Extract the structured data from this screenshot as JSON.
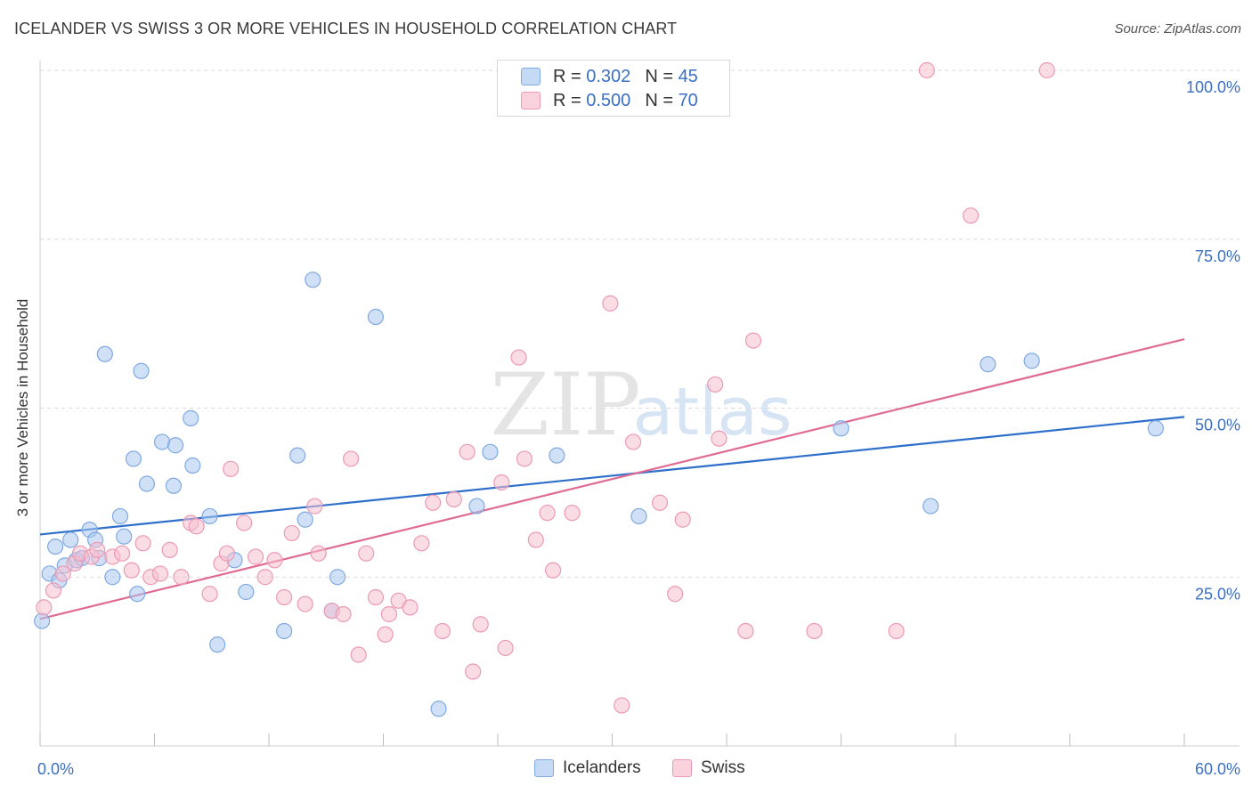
{
  "title": "ICELANDER VS SWISS 3 OR MORE VEHICLES IN HOUSEHOLD CORRELATION CHART",
  "source": "Source: ZipAtlas.com",
  "watermark": {
    "zip": "ZIP",
    "atlas": "atlas"
  },
  "legend": {
    "series": [
      {
        "r_label": "R =",
        "r_value": "0.302",
        "n_label": "N =",
        "n_value": "45",
        "color": "#aac8f0",
        "border": "#7fa9e0"
      },
      {
        "r_label": "R =",
        "r_value": "0.500",
        "n_label": "N =",
        "n_value": "70",
        "color": "#f6c0d0",
        "border": "#ec9ab4"
      }
    ]
  },
  "bottom_legend": [
    "Icelanders",
    "Swiss"
  ],
  "chart_data": {
    "type": "scatter",
    "title": "ICELANDER VS SWISS 3 OR MORE VEHICLES IN HOUSEHOLD CORRELATION CHART",
    "xlabel": "",
    "ylabel": "3 or more Vehicles in Household",
    "xlim": [
      0,
      60
    ],
    "ylim": [
      0,
      100
    ],
    "x_tick_labels": [
      "0.0%",
      "60.0%"
    ],
    "y_ticks": [
      25,
      50,
      75,
      100
    ],
    "y_tick_labels": [
      "25.0%",
      "50.0%",
      "75.0%",
      "100.0%"
    ],
    "series": [
      {
        "name": "Icelanders",
        "color": "#7fa9e0",
        "fill": "#aac8f0",
        "line_color": "#2f6fcc",
        "trend": {
          "x": [
            0,
            60
          ],
          "y": [
            31.3,
            48.7
          ]
        },
        "points": [
          [
            0.1,
            18.5
          ],
          [
            0.5,
            25.5
          ],
          [
            0.8,
            29.5
          ],
          [
            1.0,
            24.5
          ],
          [
            1.3,
            26.7
          ],
          [
            1.6,
            30.5
          ],
          [
            1.9,
            27.5
          ],
          [
            2.2,
            27.8
          ],
          [
            2.6,
            32.0
          ],
          [
            2.9,
            30.5
          ],
          [
            3.1,
            27.8
          ],
          [
            3.4,
            58.0
          ],
          [
            3.8,
            25.0
          ],
          [
            4.2,
            34.0
          ],
          [
            4.4,
            31.0
          ],
          [
            4.9,
            42.5
          ],
          [
            5.1,
            22.5
          ],
          [
            5.3,
            55.5
          ],
          [
            5.6,
            38.8
          ],
          [
            6.4,
            45.0
          ],
          [
            7.0,
            38.5
          ],
          [
            7.1,
            44.5
          ],
          [
            7.9,
            48.5
          ],
          [
            8.0,
            41.5
          ],
          [
            8.9,
            34.0
          ],
          [
            9.3,
            15.0
          ],
          [
            10.2,
            27.5
          ],
          [
            10.8,
            22.8
          ],
          [
            12.8,
            17.0
          ],
          [
            13.5,
            43.0
          ],
          [
            13.9,
            33.5
          ],
          [
            14.3,
            69.0
          ],
          [
            15.3,
            20.0
          ],
          [
            15.6,
            25.0
          ],
          [
            17.6,
            63.5
          ],
          [
            20.9,
            5.5
          ],
          [
            22.9,
            35.5
          ],
          [
            23.6,
            43.5
          ],
          [
            27.1,
            43.0
          ],
          [
            31.4,
            34.0
          ],
          [
            42.0,
            47.0
          ],
          [
            46.7,
            35.5
          ],
          [
            49.7,
            56.5
          ],
          [
            58.5,
            47.0
          ],
          [
            52.0,
            57.0
          ]
        ]
      },
      {
        "name": "Swiss",
        "color": "#ec9ab4",
        "fill": "#f6c0d0",
        "line_color": "#e06a93",
        "trend": {
          "x": [
            0,
            60
          ],
          "y": [
            18.8,
            60.2
          ]
        },
        "points": [
          [
            0.2,
            20.5
          ],
          [
            0.7,
            23.0
          ],
          [
            1.2,
            25.5
          ],
          [
            1.8,
            27.0
          ],
          [
            2.1,
            28.5
          ],
          [
            2.7,
            28.0
          ],
          [
            3.0,
            29.0
          ],
          [
            3.8,
            28.0
          ],
          [
            4.3,
            28.5
          ],
          [
            4.8,
            26.0
          ],
          [
            5.4,
            30.0
          ],
          [
            5.8,
            25.0
          ],
          [
            6.3,
            25.5
          ],
          [
            6.8,
            29.0
          ],
          [
            7.4,
            25.0
          ],
          [
            7.9,
            33.0
          ],
          [
            8.2,
            32.5
          ],
          [
            8.9,
            22.5
          ],
          [
            9.5,
            27.0
          ],
          [
            9.8,
            28.5
          ],
          [
            10.0,
            41.0
          ],
          [
            10.7,
            33.0
          ],
          [
            11.3,
            28.0
          ],
          [
            11.8,
            25.0
          ],
          [
            12.3,
            27.5
          ],
          [
            12.8,
            22.0
          ],
          [
            13.2,
            31.5
          ],
          [
            13.9,
            21.0
          ],
          [
            14.4,
            35.5
          ],
          [
            14.6,
            28.5
          ],
          [
            15.3,
            20.0
          ],
          [
            15.9,
            19.5
          ],
          [
            16.3,
            42.5
          ],
          [
            16.7,
            13.5
          ],
          [
            17.1,
            28.5
          ],
          [
            17.6,
            22.0
          ],
          [
            18.1,
            16.5
          ],
          [
            18.3,
            19.5
          ],
          [
            18.8,
            21.5
          ],
          [
            19.4,
            20.5
          ],
          [
            20.0,
            30.0
          ],
          [
            20.6,
            36.0
          ],
          [
            21.1,
            17.0
          ],
          [
            21.7,
            36.5
          ],
          [
            22.4,
            43.5
          ],
          [
            22.7,
            11.0
          ],
          [
            23.1,
            18.0
          ],
          [
            24.2,
            39.0
          ],
          [
            24.4,
            14.5
          ],
          [
            25.1,
            57.5
          ],
          [
            25.4,
            42.5
          ],
          [
            26.0,
            30.5
          ],
          [
            26.6,
            34.5
          ],
          [
            26.9,
            26.0
          ],
          [
            27.9,
            34.5
          ],
          [
            29.9,
            65.5
          ],
          [
            30.5,
            6.0
          ],
          [
            31.1,
            45.0
          ],
          [
            32.5,
            36.0
          ],
          [
            33.3,
            22.5
          ],
          [
            33.7,
            33.5
          ],
          [
            35.4,
            53.5
          ],
          [
            35.6,
            45.5
          ],
          [
            37.0,
            17.0
          ],
          [
            37.4,
            60.0
          ],
          [
            40.6,
            17.0
          ],
          [
            44.9,
            17.0
          ],
          [
            46.5,
            100.0
          ],
          [
            48.8,
            78.5
          ],
          [
            52.8,
            100.0
          ]
        ]
      }
    ]
  }
}
